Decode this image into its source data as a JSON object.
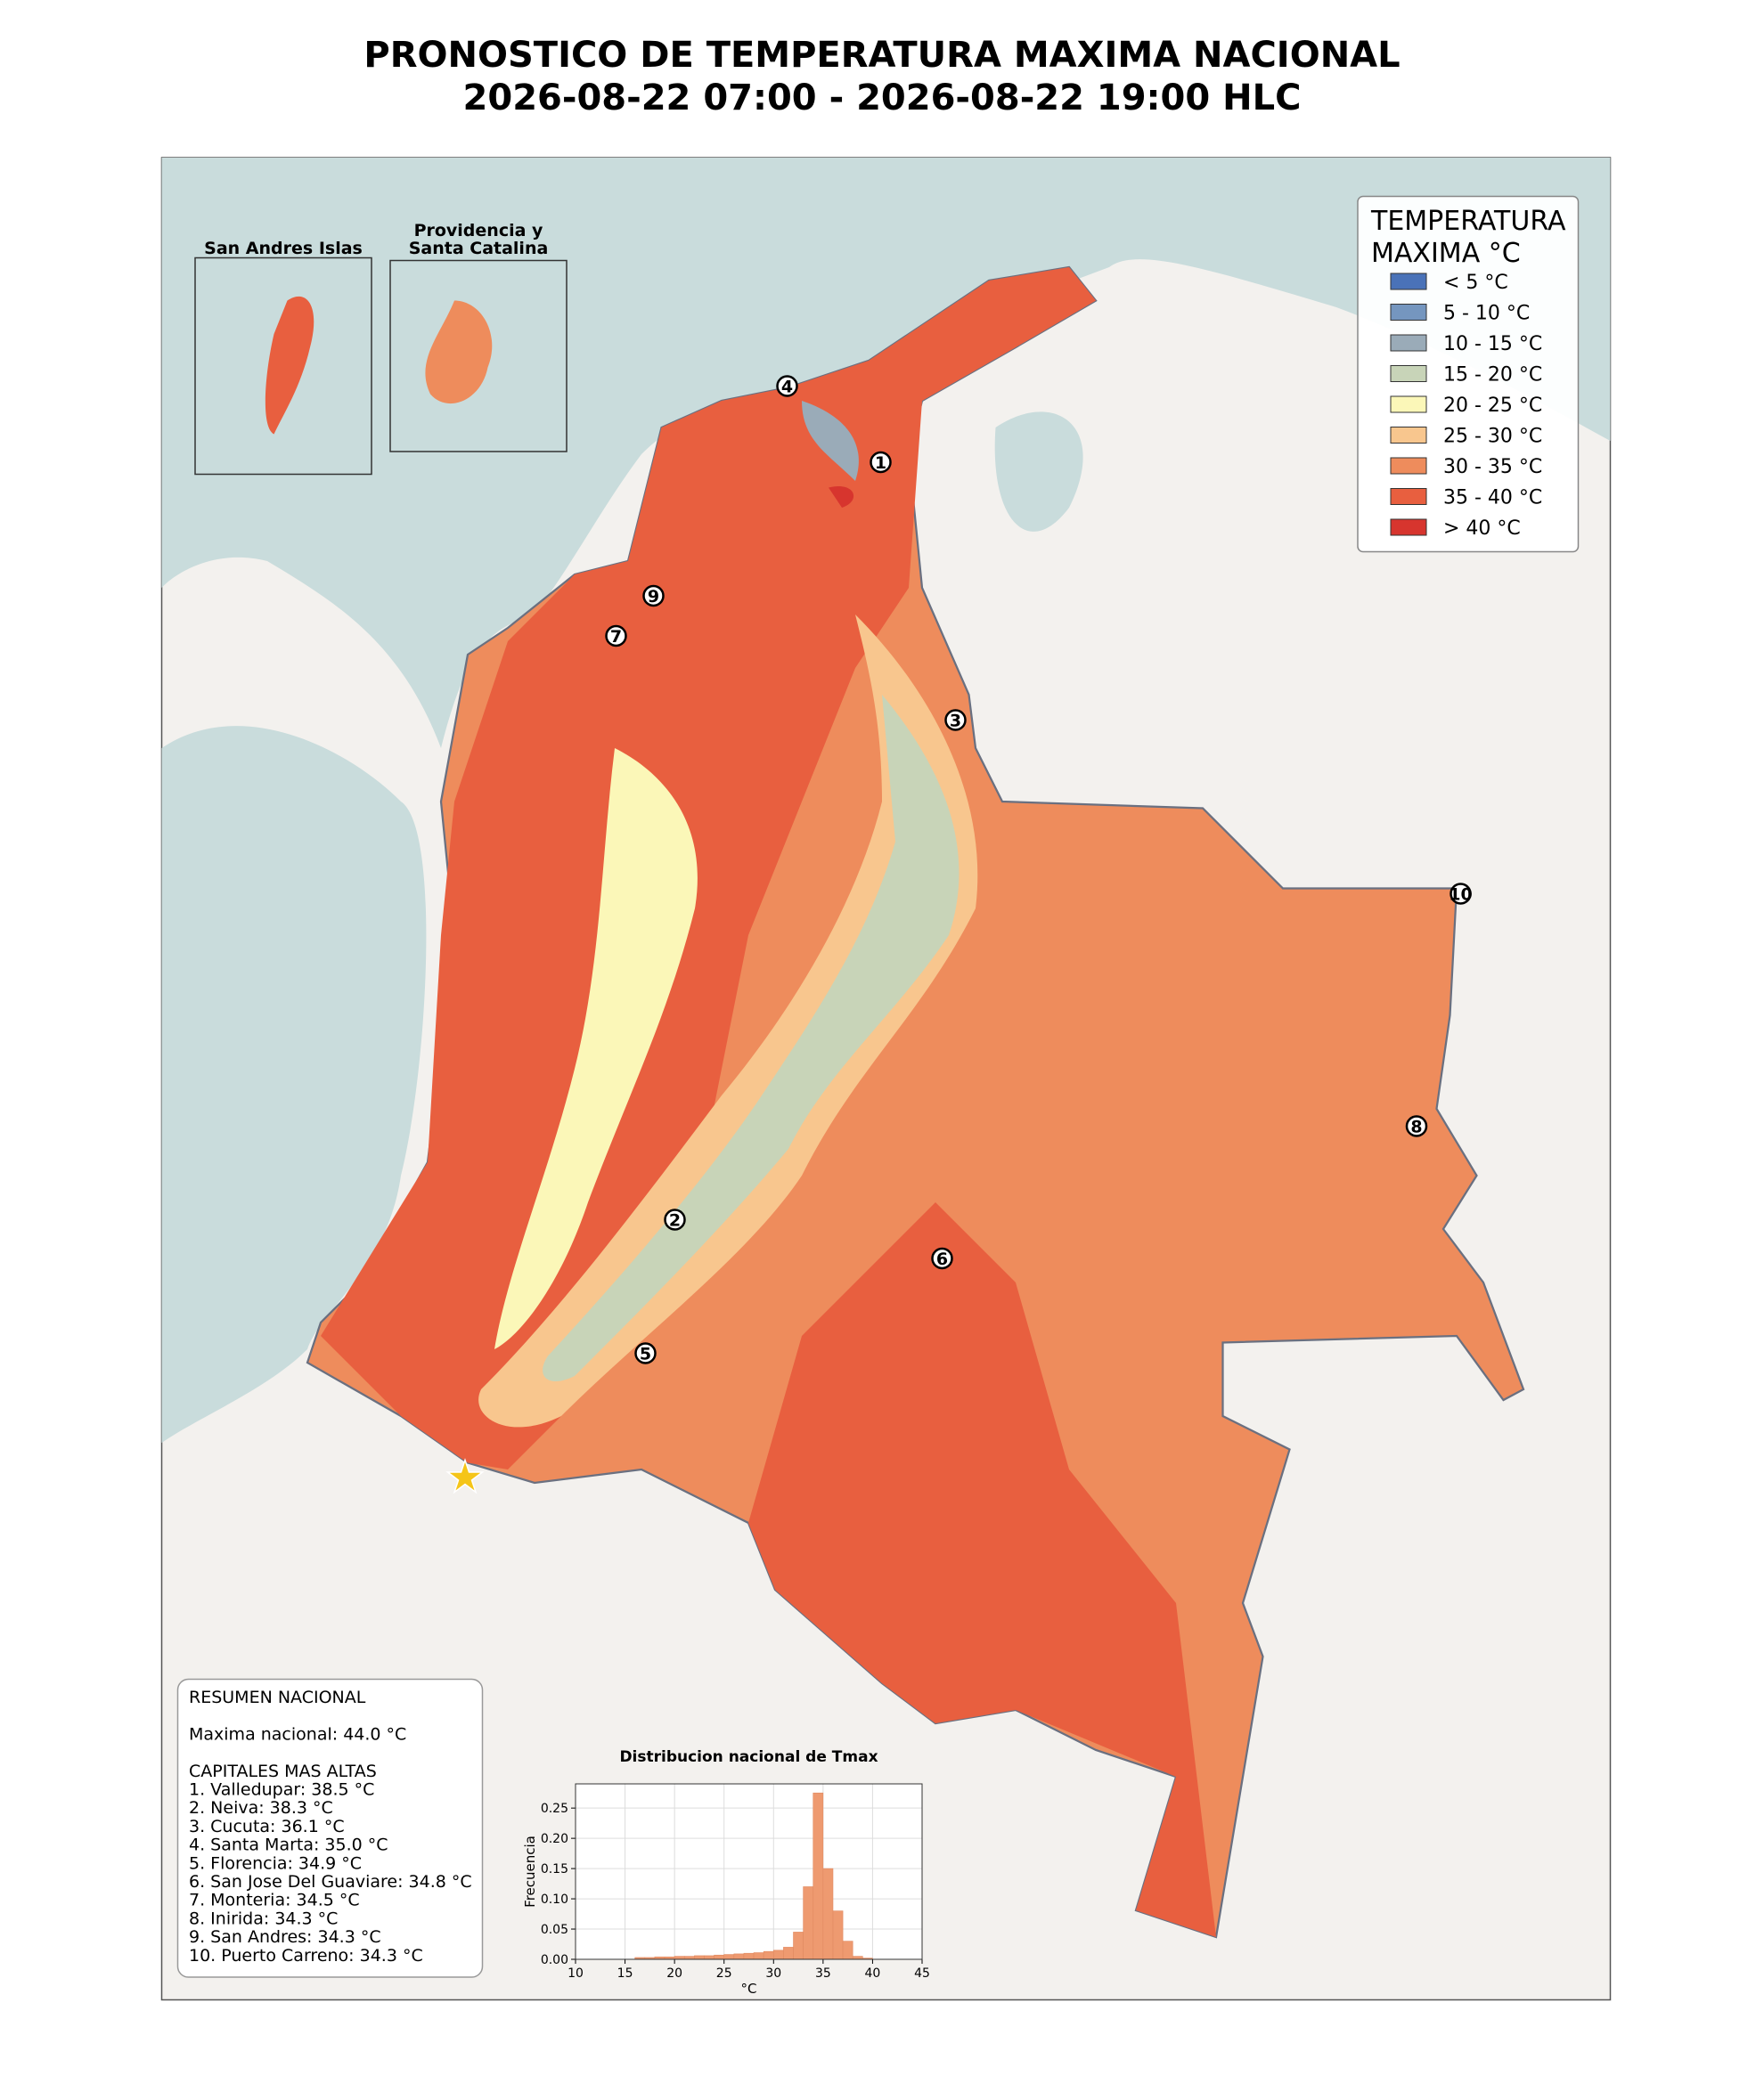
{
  "title_lines": [
    "PRONOSTICO DE TEMPERATURA MAXIMA NACIONAL",
    "2026-08-22 07:00 - 2026-08-22 19:00 HLC"
  ],
  "legend": {
    "title_lines": [
      "TEMPERATURA",
      "MAXIMA °C"
    ],
    "items": [
      {
        "label": "< 5 °C",
        "color": "#4a72b8"
      },
      {
        "label": "5 - 10 °C",
        "color": "#7596bf"
      },
      {
        "label": "10 - 15 °C",
        "color": "#9aabb8"
      },
      {
        "label": "15 - 20 °C",
        "color": "#c8d4b8"
      },
      {
        "label": "20 - 25 °C",
        "color": "#fbf7b8"
      },
      {
        "label": "25 - 30 °C",
        "color": "#f8c68e"
      },
      {
        "label": "30 - 35 °C",
        "color": "#ee8c5c"
      },
      {
        "label": "35 - 40 °C",
        "color": "#e85f3f"
      },
      {
        "label": "> 40 °C",
        "color": "#d7352e"
      }
    ]
  },
  "insets": [
    {
      "title_lines": [
        "San Andres Islas"
      ]
    },
    {
      "title_lines": [
        "Providencia y",
        "Santa Catalina"
      ]
    }
  ],
  "markers": [
    "1",
    "2",
    "3",
    "4",
    "5",
    "6",
    "7",
    "8",
    "9",
    "10"
  ],
  "summary": [
    "RESUMEN NACIONAL",
    "",
    "Maxima nacional: 44.0 °C",
    "",
    "CAPITALES MAS ALTAS",
    "1. Valledupar: 38.5 °C",
    "2. Neiva: 38.3 °C",
    "3. Cucuta: 36.1 °C",
    "4. Santa Marta: 35.0 °C",
    "5. Florencia: 34.9 °C",
    "6. San Jose Del Guaviare: 34.8 °C",
    "7. Monteria: 34.5 °C",
    "8. Inirida: 34.3 °C",
    "9. San Andres: 34.3 °C",
    "10. Puerto Carreno: 34.3 °C"
  ],
  "chart_data": {
    "type": "histogram",
    "title": "Distribucion nacional de Tmax",
    "xlabel": "°C",
    "ylabel": "Frecuencia",
    "color": "#ee9a70",
    "bins": [
      16,
      17,
      18,
      19,
      20,
      21,
      22,
      23,
      24,
      25,
      26,
      27,
      28,
      29,
      30,
      31,
      32,
      33,
      34,
      35,
      36,
      37,
      38,
      39,
      40
    ],
    "values": [
      0.003,
      0.003,
      0.004,
      0.004,
      0.005,
      0.005,
      0.006,
      0.006,
      0.007,
      0.008,
      0.009,
      0.01,
      0.011,
      0.013,
      0.015,
      0.02,
      0.045,
      0.12,
      0.275,
      0.15,
      0.08,
      0.03,
      0.005,
      0.002
    ],
    "xlim": [
      10,
      45
    ],
    "xticks": [
      10,
      15,
      20,
      25,
      30,
      35,
      40,
      45
    ],
    "ylim": [
      0,
      0.29
    ],
    "yticks": [
      {
        "value": 0,
        "label": "0.00"
      },
      {
        "value": 0.05,
        "label": "0.05"
      },
      {
        "value": 0.1,
        "label": "0.10"
      },
      {
        "value": 0.15,
        "label": "0.15"
      },
      {
        "value": 0.2,
        "label": "0.20"
      },
      {
        "value": 0.25,
        "label": "0.25"
      }
    ],
    "grid": true
  }
}
